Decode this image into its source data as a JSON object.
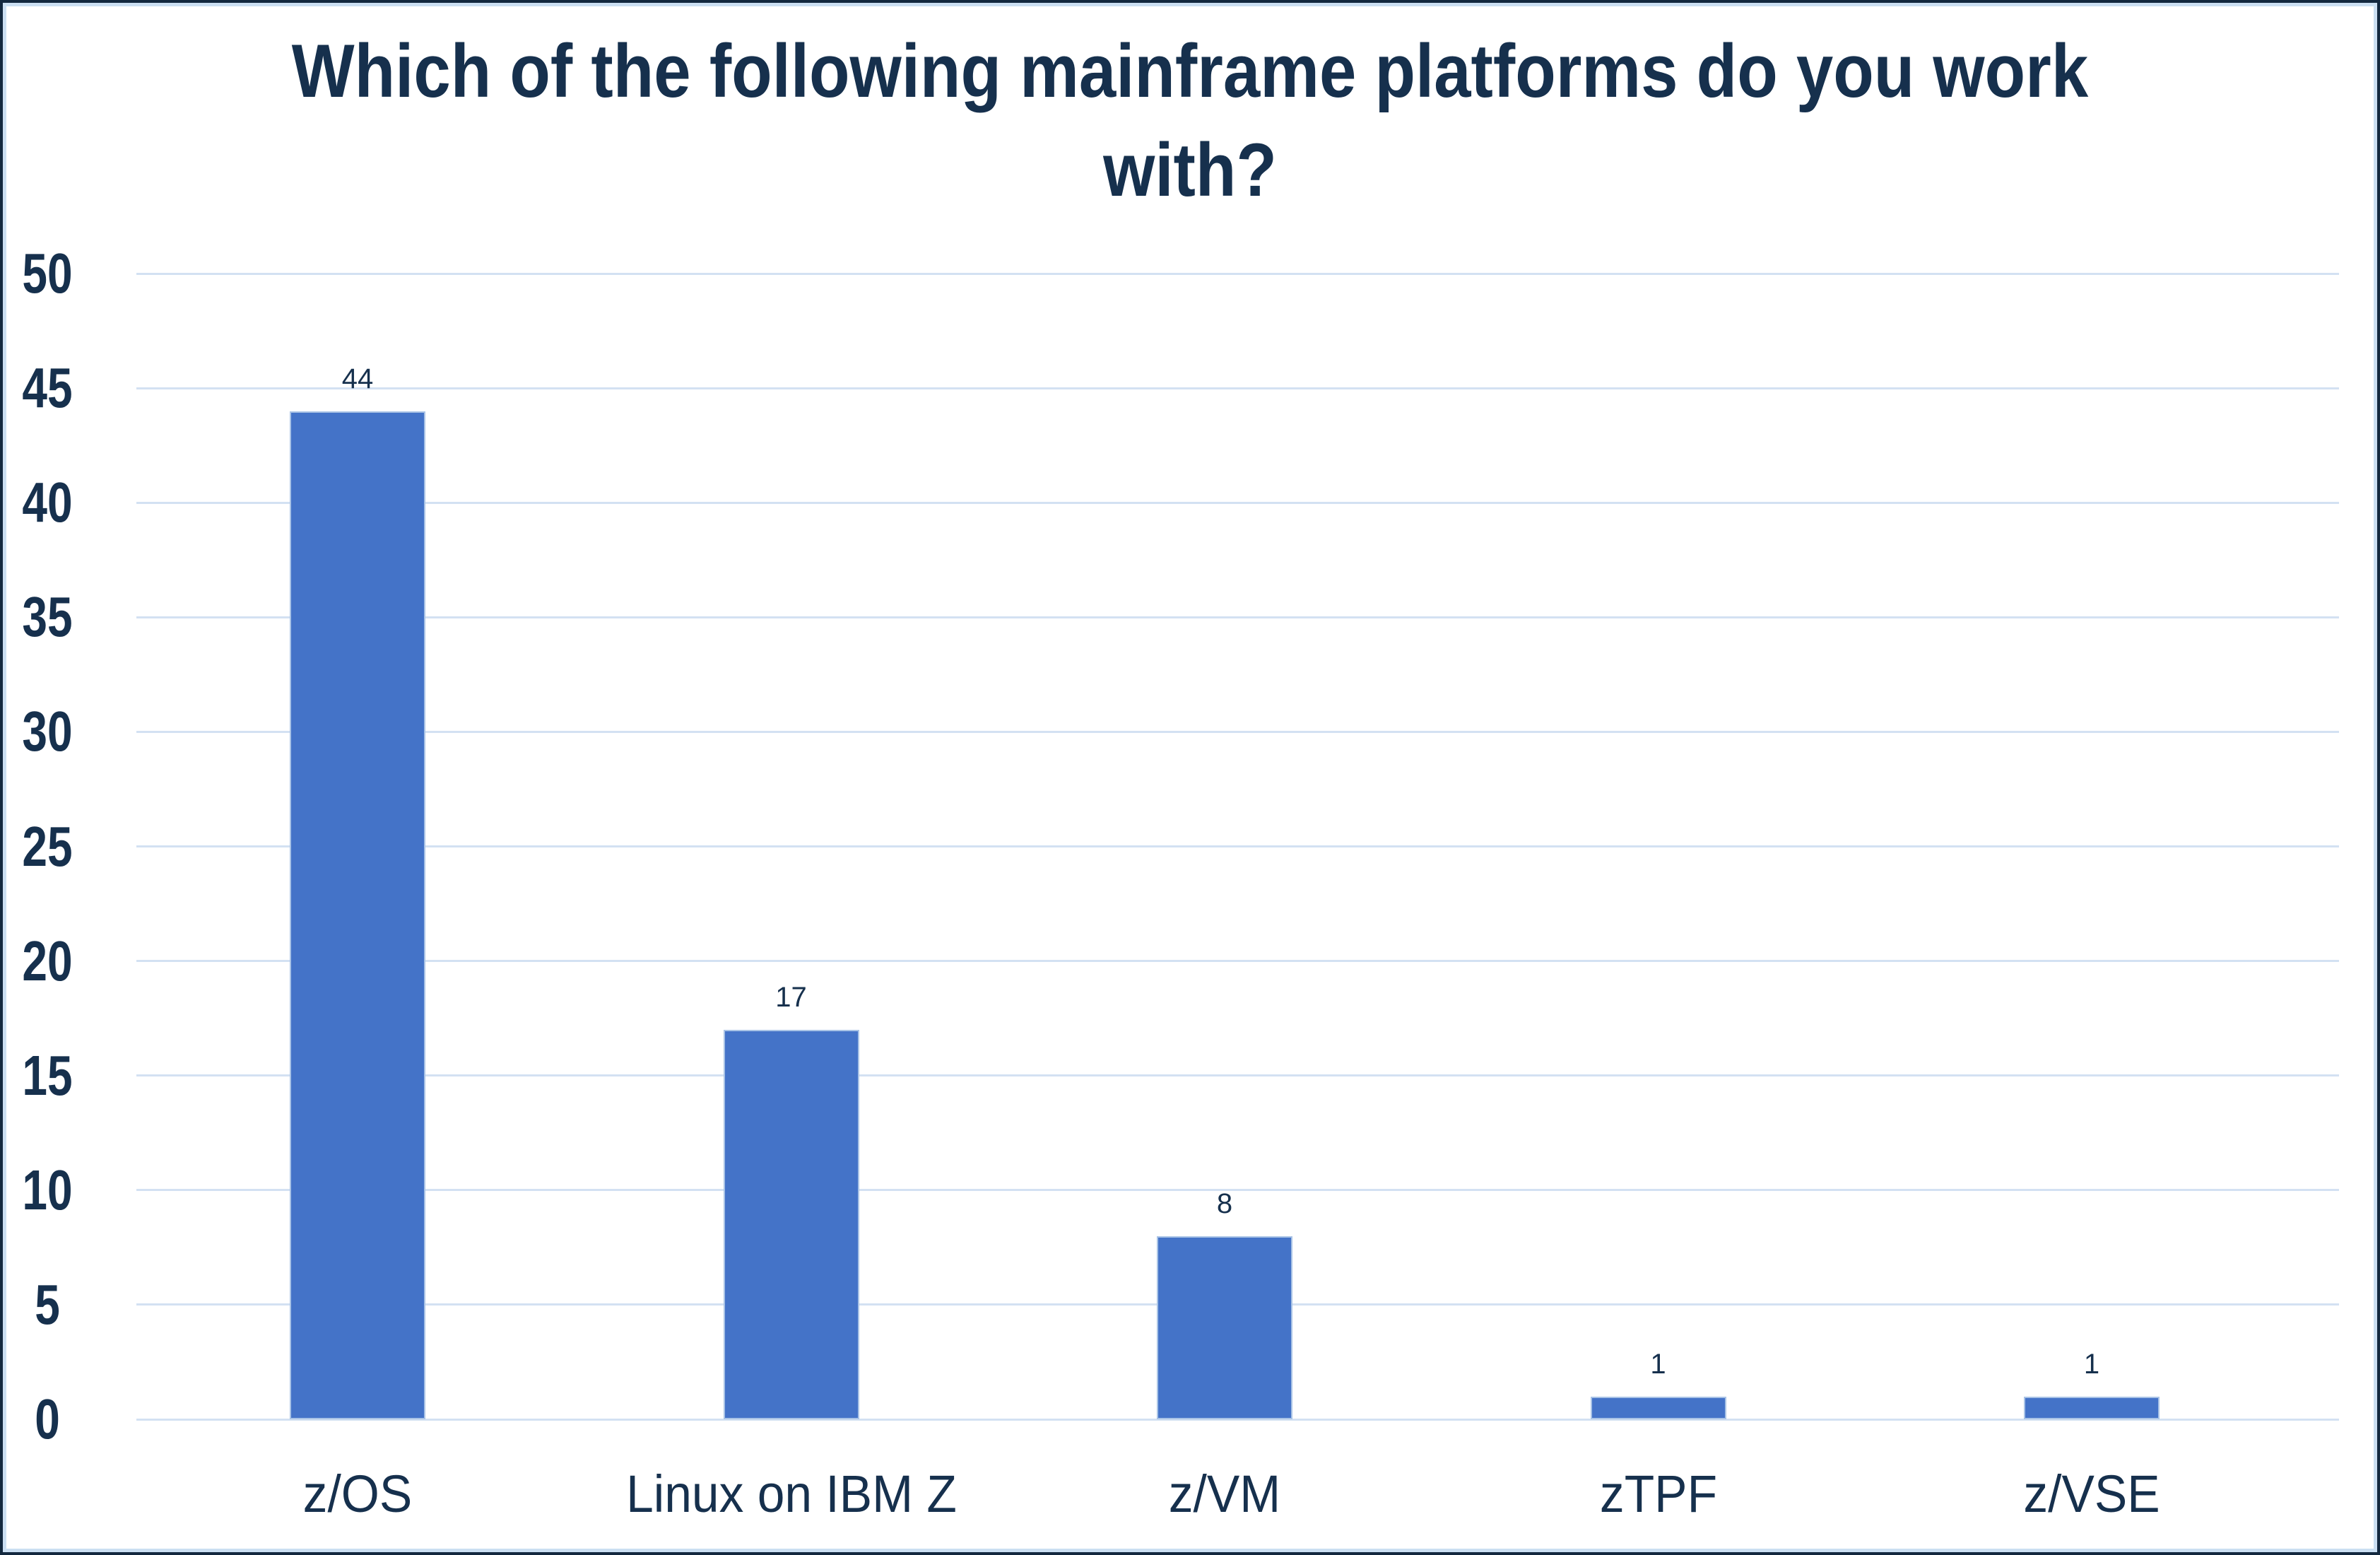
{
  "header": {
    "title_lines": [
      "Which of the following mainframe platforms do you work",
      "with?"
    ]
  },
  "chart_data": {
    "type": "bar",
    "title": "Which of the following mainframe platforms do you work with?",
    "categories": [
      "z/OS",
      "Linux on IBM Z",
      "z/VM",
      "zTPF",
      "z/VSE"
    ],
    "values": [
      44,
      17,
      8,
      1,
      1
    ],
    "data_labels": [
      44,
      17,
      8,
      1,
      1
    ],
    "xlabel": "",
    "ylabel": "",
    "ylim": [
      0,
      50
    ],
    "ytick_step": 5,
    "yticks": [
      0,
      5,
      10,
      15,
      20,
      25,
      30,
      35,
      40,
      45,
      50
    ],
    "grid": true,
    "legend": false
  },
  "colors": {
    "background": "#FFFFFF",
    "text": "#16304D",
    "bar_fill": "#4473C8",
    "bar_border": "#A9C3E6",
    "gridline": "#D3E1F2",
    "frame_inner": "#CBDFF2",
    "frame_outer": "#13283E"
  }
}
